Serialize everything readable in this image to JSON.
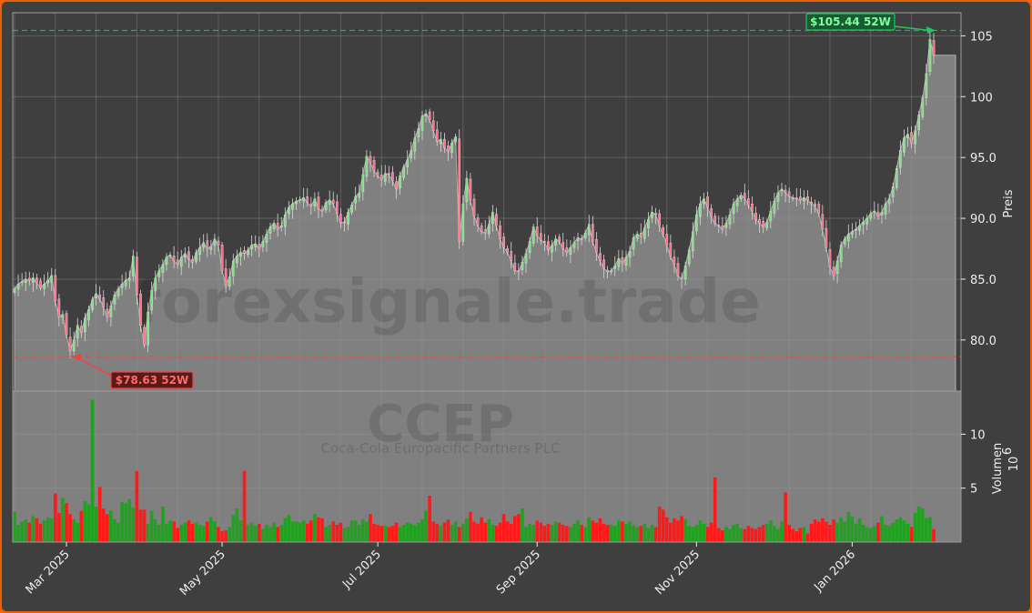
{
  "chart_data": {
    "type": "candlestick",
    "ticker": "CCEP",
    "company": "Coca-Cola Europacific Partners PLC",
    "watermark": "forexsignale.trade",
    "ylabel": "Preis",
    "volume_label": "Volumen",
    "volume_unit": "10",
    "volume_exponent": "6",
    "ylim": [
      75.8,
      106.9
    ],
    "yticks": [
      80,
      85,
      90,
      95,
      100,
      105
    ],
    "ytick_labels": [
      "80.0",
      "85.0",
      "90.0",
      "95.0",
      "100",
      "105"
    ],
    "volume_ylim": [
      0,
      14
    ],
    "volume_ticks": [
      5,
      10
    ],
    "volume_tick_labels": [
      "5",
      "10"
    ],
    "x_tick_labels": [
      {
        "label": "Mar 2025",
        "index": 14
      },
      {
        "label": "May 2025",
        "index": 56
      },
      {
        "label": "Jul 2025",
        "index": 98
      },
      {
        "label": "Sep 2025",
        "index": 141
      },
      {
        "label": "Nov 2025",
        "index": 184
      },
      {
        "label": "Jan 2026",
        "index": 226
      }
    ],
    "high_52w": {
      "value": 105.44,
      "label": "$105.44 52W",
      "color": "#22c55e"
    },
    "low_52w": {
      "value": 78.63,
      "label": "$78.63 52W",
      "color": "#ef4444"
    },
    "last_close": 103.4,
    "grid": true,
    "colors": {
      "up": "#22a022",
      "down": "#ff1a1a",
      "area": "#808080",
      "background": "#3f3f3f",
      "border": "#e8600a"
    },
    "closes": [
      84.2,
      84.6,
      84.8,
      85.0,
      84.9,
      85.1,
      84.7,
      84.3,
      84.6,
      84.9,
      85.3,
      83.2,
      81.9,
      82.1,
      80.4,
      79.1,
      80.0,
      81.2,
      80.6,
      81.8,
      82.5,
      83.3,
      83.8,
      83.4,
      82.7,
      81.9,
      82.8,
      83.7,
      84.2,
      84.6,
      84.9,
      85.1,
      86.9,
      83.7,
      81.2,
      79.6,
      82.3,
      84.1,
      85.1,
      85.7,
      86.2,
      86.8,
      87.0,
      86.5,
      86.2,
      86.8,
      87.1,
      86.7,
      86.4,
      87.2,
      87.6,
      88.0,
      87.5,
      87.7,
      88.3,
      87.8,
      85.7,
      84.5,
      85.2,
      86.5,
      86.9,
      87.2,
      87.1,
      87.4,
      87.8,
      87.9,
      87.5,
      88.1,
      88.7,
      89.3,
      89.6,
      89.1,
      89.4,
      90.3,
      90.9,
      91.2,
      91.4,
      91.5,
      91.7,
      91.3,
      91.0,
      91.6,
      90.8,
      90.6,
      91.3,
      91.5,
      91.2,
      90.4,
      89.6,
      89.7,
      90.5,
      91.1,
      91.8,
      92.1,
      93.6,
      95.1,
      94.6,
      93.9,
      93.5,
      93.2,
      93.7,
      93.6,
      93.1,
      92.4,
      93.5,
      94.2,
      94.8,
      95.6,
      96.6,
      97.4,
      98.4,
      98.6,
      98.1,
      97.2,
      96.3,
      96.5,
      95.8,
      95.5,
      96.2,
      96.7,
      88.1,
      91.2,
      93.3,
      91.5,
      90.2,
      89.4,
      88.9,
      88.8,
      89.5,
      90.5,
      89.4,
      88.3,
      87.6,
      87.2,
      86.5,
      85.7,
      85.6,
      86.4,
      87.1,
      88.1,
      89.3,
      88.6,
      88.2,
      88.0,
      87.4,
      87.8,
      88.3,
      88.1,
      87.5,
      87.2,
      87.6,
      88.0,
      88.4,
      88.3,
      88.8,
      89.5,
      88.1,
      87.2,
      86.5,
      85.9,
      85.6,
      85.7,
      86.1,
      86.7,
      86.3,
      86.8,
      87.3,
      88.4,
      88.7,
      88.5,
      89.2,
      89.9,
      90.5,
      90.3,
      89.4,
      88.7,
      87.8,
      86.9,
      86.2,
      85.3,
      85.0,
      86.1,
      87.4,
      88.9,
      90.3,
      91.2,
      91.6,
      90.9,
      90.1,
      89.6,
      89.4,
      89.1,
      89.6,
      90.3,
      91.2,
      91.6,
      91.9,
      91.7,
      91.1,
      90.6,
      89.9,
      89.6,
      89.3,
      89.7,
      90.6,
      91.4,
      92.1,
      92.4,
      92.1,
      91.8,
      91.7,
      91.6,
      91.5,
      91.7,
      91.5,
      91.2,
      91.0,
      90.4,
      89.1,
      87.6,
      86.0,
      85.3,
      86.5,
      87.8,
      88.3,
      88.7,
      88.9,
      89.1,
      89.4,
      89.7,
      90.0,
      90.4,
      90.6,
      90.2,
      90.5,
      91.2,
      91.6,
      92.6,
      94.1,
      95.6,
      96.6,
      96.9,
      96.2,
      97.2,
      98.5,
      99.9,
      101.9,
      104.7,
      103.4
    ],
    "volumes": [
      2.8,
      1.6,
      1.9,
      2.1,
      1.8,
      2.4,
      2.2,
      1.7,
      2.0,
      2.3,
      2.2,
      4.5,
      2.7,
      4.1,
      3.6,
      2.6,
      2.1,
      1.8,
      2.9,
      3.8,
      3.5,
      13.2,
      3.3,
      5.1,
      3.1,
      2.6,
      2.9,
      2.1,
      1.8,
      3.7,
      3.6,
      4.0,
      3.2,
      6.6,
      3.0,
      3.0,
      1.7,
      2.9,
      2.1,
      1.6,
      3.3,
      1.7,
      2.0,
      1.9,
      1.3,
      1.6,
      1.8,
      2.0,
      1.7,
      1.8,
      1.6,
      1.5,
      1.9,
      2.3,
      1.9,
      1.4,
      1.0,
      1.1,
      1.4,
      2.5,
      3.1,
      2.0,
      6.6,
      1.6,
      1.8,
      1.5,
      1.7,
      1.2,
      1.6,
      1.4,
      1.8,
      1.4,
      1.6,
      2.2,
      2.5,
      1.9,
      1.9,
      1.8,
      2.0,
      1.7,
      2.0,
      2.6,
      2.3,
      2.2,
      1.4,
      1.6,
      1.9,
      1.6,
      1.8,
      1.3,
      1.4,
      2.0,
      2.0,
      1.6,
      2.1,
      1.9,
      2.6,
      1.7,
      1.6,
      1.5,
      1.5,
      1.4,
      1.5,
      1.8,
      1.4,
      1.6,
      1.8,
      1.7,
      1.6,
      1.8,
      2.1,
      2.9,
      4.3,
      1.9,
      1.7,
      1.5,
      1.8,
      2.1,
      1.6,
      1.9,
      1.4,
      1.7,
      2.2,
      2.8,
      1.9,
      1.7,
      2.3,
      1.8,
      2.1,
      1.6,
      1.5,
      1.8,
      2.6,
      1.9,
      1.7,
      2.4,
      2.6,
      3.1,
      1.4,
      1.7,
      1.6,
      2.0,
      1.8,
      1.5,
      1.7,
      1.6,
      1.9,
      1.8,
      1.6,
      1.5,
      1.4,
      1.7,
      2.0,
      1.6,
      1.4,
      2.3,
      2.0,
      1.8,
      2.2,
      1.7,
      1.6,
      1.6,
      1.5,
      2.0,
      1.9,
      1.7,
      1.9,
      1.6,
      1.4,
      1.5,
      1.7,
      1.3,
      1.6,
      1.4,
      3.3,
      3.0,
      2.3,
      1.8,
      2.2,
      2.0,
      2.4,
      2.1,
      1.5,
      1.4,
      1.6,
      2.0,
      1.7,
      1.4,
      1.8,
      6.0,
      1.3,
      1.1,
      1.4,
      1.2,
      1.6,
      1.7,
      1.3,
      1.2,
      1.5,
      1.3,
      1.2,
      1.4,
      1.6,
      1.7,
      2.0,
      1.5,
      1.2,
      1.9,
      4.6,
      1.6,
      1.2,
      1.0,
      1.3,
      1.4,
      0.8,
      1.7,
      2.1,
      1.9,
      2.2,
      1.9,
      1.6,
      2.1,
      1.8,
      2.3,
      1.9,
      2.8,
      2.4,
      1.7,
      2.2,
      1.6,
      1.4,
      1.3,
      1.5,
      1.8,
      2.4,
      1.6,
      1.5,
      1.8,
      2.1,
      2.3,
      2.0,
      1.7,
      1.4,
      2.7,
      3.3,
      3.1,
      2.2,
      2.3,
      1.2
    ]
  }
}
